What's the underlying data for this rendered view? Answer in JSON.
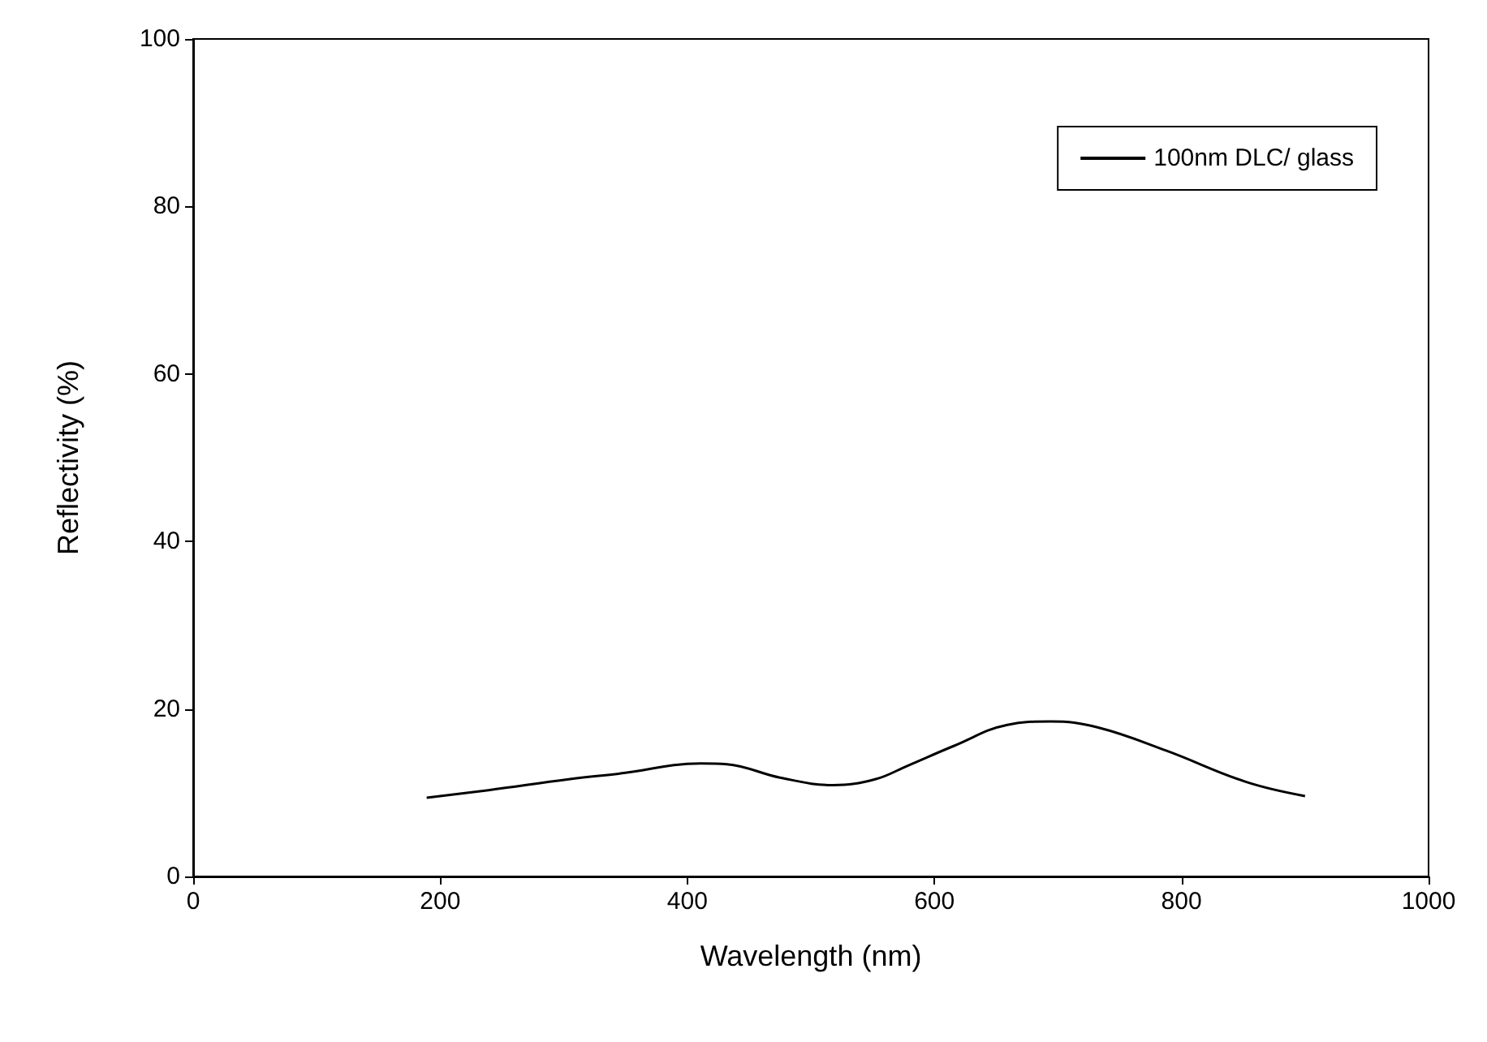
{
  "chart_data": {
    "type": "line",
    "xlabel": "Wavelength (nm)",
    "ylabel": "Reflectivity (%)",
    "x": [
      189,
      239,
      304,
      346,
      411,
      432,
      475,
      518,
      552,
      578,
      616,
      659,
      694,
      732,
      788,
      852,
      900
    ],
    "series": [
      {
        "name": "100nm DLC/ glass",
        "color": "#000000",
        "values": [
          9.4,
          10.3,
          11.6,
          12.3,
          13.5,
          13.4,
          11.8,
          10.9,
          11.6,
          13.2,
          15.6,
          18.1,
          18.5,
          17.8,
          15.0,
          11.3,
          9.6
        ]
      }
    ],
    "xlim": [
      0,
      1000
    ],
    "xticks": [
      0,
      200,
      400,
      600,
      800,
      1000
    ],
    "ylim": [
      0,
      100
    ],
    "yticks": [
      0,
      20,
      40,
      60,
      80,
      100
    ],
    "grid": false,
    "legend": "top right",
    "marker": "none",
    "line_style": "solid"
  }
}
